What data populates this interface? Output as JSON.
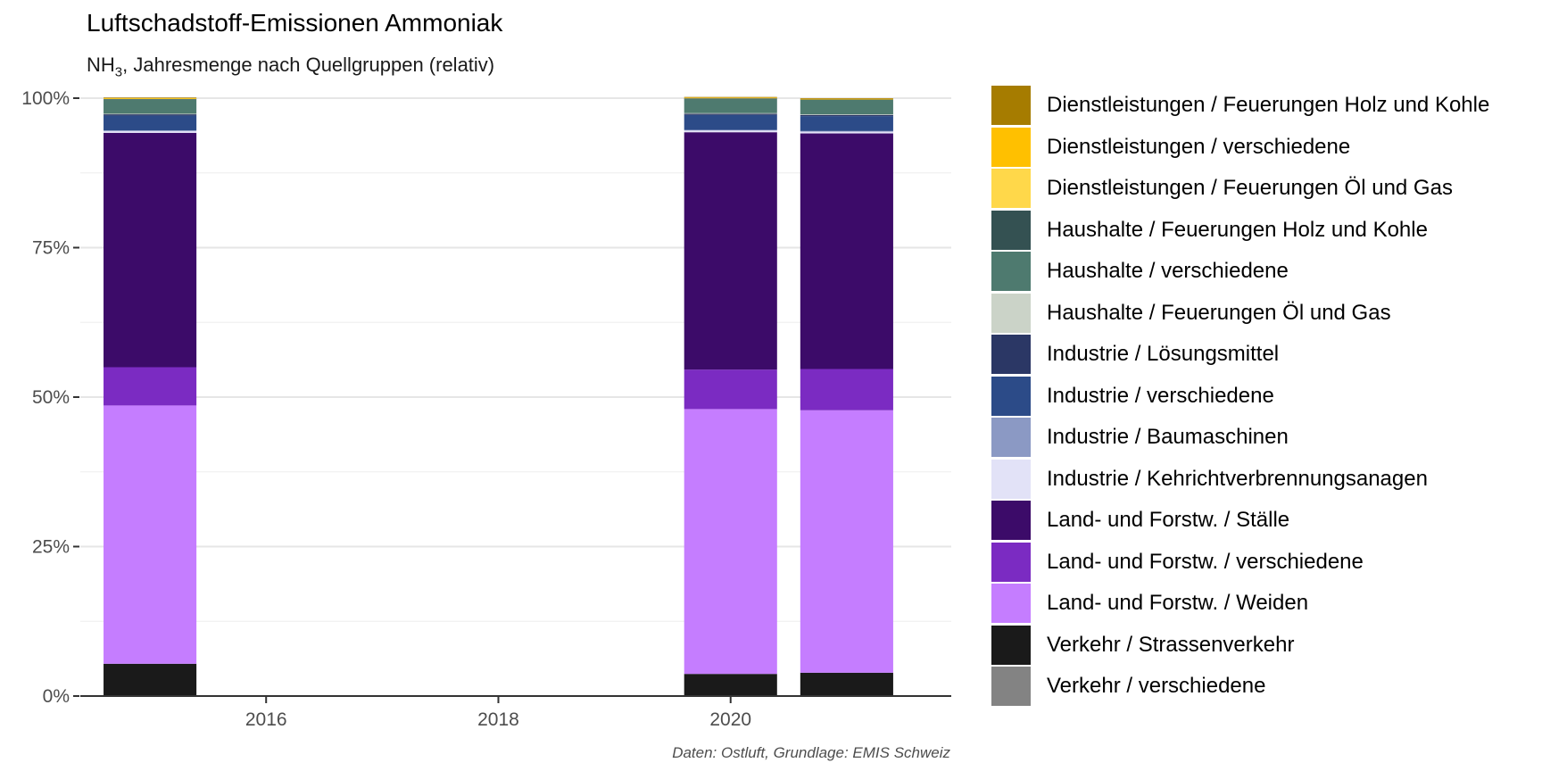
{
  "title": "Luftschadstoff-Emissionen Ammoniak",
  "subtitle_main": "NH",
  "subtitle_sub": "3",
  "subtitle_rest": ", Jahresmenge nach Quellgruppen (relativ)",
  "caption": "Daten: Ostluft, Grundlage: EMIS Schweiz",
  "chart_data": {
    "type": "bar",
    "stacked": true,
    "normalized": true,
    "x_ticks": [
      "2016",
      "2018",
      "2020"
    ],
    "y_ticks": [
      "0%",
      "25%",
      "50%",
      "75%",
      "100%"
    ],
    "xlim": [
      2014.4,
      2021.9
    ],
    "ylim": [
      0,
      100
    ],
    "grid": true,
    "legend_position": "right",
    "categories": [
      2015,
      2020,
      2021
    ],
    "series": [
      {
        "name": "Verkehr / verschiedene",
        "color": "#838383",
        "values": [
          0.1,
          0.1,
          0.1
        ]
      },
      {
        "name": "Verkehr / Strassenverkehr",
        "color": "#1a1a1a",
        "values": [
          5.3,
          3.6,
          3.8
        ]
      },
      {
        "name": "Land- und Forstw. / Weiden",
        "color": "#c57dff",
        "values": [
          43.2,
          44.3,
          43.9
        ]
      },
      {
        "name": "Land- und Forstw. / verschiedene",
        "color": "#7b2bc2",
        "values": [
          6.4,
          6.6,
          6.9
        ]
      },
      {
        "name": "Land- und Forstw. / Ställe",
        "color": "#3c0b69",
        "values": [
          39.2,
          39.7,
          39.4
        ]
      },
      {
        "name": "Industrie / Kehrichtverbrennungsanagen",
        "color": "#e2e2f7",
        "values": [
          0.3,
          0.3,
          0.3
        ]
      },
      {
        "name": "Industrie / Baumaschinen",
        "color": "#8b99c4",
        "values": [
          0.1,
          0.1,
          0.1
        ]
      },
      {
        "name": "Industrie / verschiedene",
        "color": "#2c4b88",
        "values": [
          2.5,
          2.5,
          2.5
        ]
      },
      {
        "name": "Industrie / Lösungsmittel",
        "color": "#2b3765",
        "values": [
          0.2,
          0.2,
          0.2
        ]
      },
      {
        "name": "Haushalte / Feuerungen Öl und Gas",
        "color": "#cbd3c8",
        "values": [
          0.1,
          0.1,
          0.1
        ]
      },
      {
        "name": "Haushalte / verschiedene",
        "color": "#4e7a6f",
        "values": [
          2.4,
          2.4,
          2.4
        ]
      },
      {
        "name": "Haushalte / Feuerungen Holz und Kohle",
        "color": "#345152",
        "values": [
          0.1,
          0.1,
          0.1
        ]
      },
      {
        "name": "Dienstleistungen / Feuerungen Öl und Gas",
        "color": "#ffd84a",
        "values": [
          0.05,
          0.05,
          0.05
        ]
      },
      {
        "name": "Dienstleistungen / verschiedene",
        "color": "#ffc000",
        "values": [
          0.05,
          0.05,
          0.05
        ]
      },
      {
        "name": "Dienstleistungen / Feuerungen Holz und Kohle",
        "color": "#a67c00",
        "values": [
          0.1,
          0.1,
          0.1
        ]
      }
    ],
    "legend": [
      {
        "label": "Dienstleistungen / Feuerungen Holz und Kohle",
        "color": "#a67c00"
      },
      {
        "label": "Dienstleistungen / verschiedene",
        "color": "#ffc000"
      },
      {
        "label": "Dienstleistungen / Feuerungen Öl und Gas",
        "color": "#ffd84a"
      },
      {
        "label": "Haushalte / Feuerungen Holz und Kohle",
        "color": "#345152"
      },
      {
        "label": "Haushalte / verschiedene",
        "color": "#4e7a6f"
      },
      {
        "label": "Haushalte / Feuerungen Öl und Gas",
        "color": "#cbd3c8"
      },
      {
        "label": "Industrie / Lösungsmittel",
        "color": "#2b3765"
      },
      {
        "label": "Industrie / verschiedene",
        "color": "#2c4b88"
      },
      {
        "label": "Industrie / Baumaschinen",
        "color": "#8b99c4"
      },
      {
        "label": "Industrie / Kehrichtverbrennungsanagen",
        "color": "#e2e2f7"
      },
      {
        "label": "Land- und Forstw. / Ställe",
        "color": "#3c0b69"
      },
      {
        "label": "Land- und Forstw. / verschiedene",
        "color": "#7b2bc2"
      },
      {
        "label": "Land- und Forstw. / Weiden",
        "color": "#c57dff"
      },
      {
        "label": "Verkehr / Strassenverkehr",
        "color": "#1a1a1a"
      },
      {
        "label": "Verkehr / verschiedene",
        "color": "#838383"
      }
    ]
  }
}
